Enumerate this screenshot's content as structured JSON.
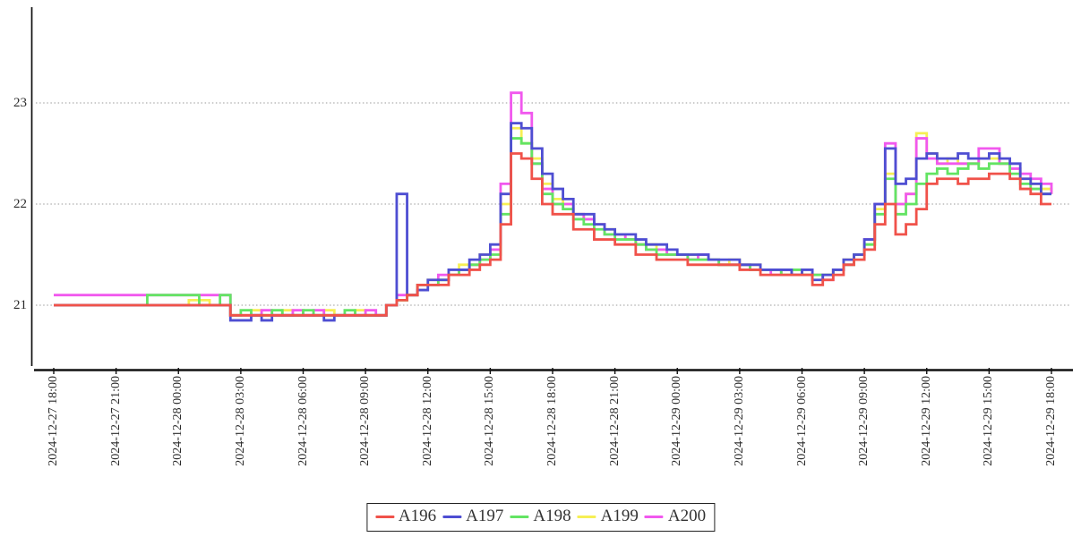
{
  "chart_data": {
    "type": "line",
    "step_mode": "post",
    "title": "",
    "xlabel": "",
    "ylabel": "",
    "grid": "horizontal-dotted",
    "legend_position": "bottom-center",
    "x_start": "2024-12-27 18:00",
    "x_end": "2024-12-29 18:00",
    "x_interval_minutes": 30,
    "x_tick_labels": [
      "2024-12-27 18:00",
      "2024-12-27 21:00",
      "2024-12-28 00:00",
      "2024-12-28 03:00",
      "2024-12-28 06:00",
      "2024-12-28 09:00",
      "2024-12-28 12:00",
      "2024-12-28 15:00",
      "2024-12-28 18:00",
      "2024-12-28 21:00",
      "2024-12-29 00:00",
      "2024-12-29 03:00",
      "2024-12-29 06:00",
      "2024-12-29 09:00",
      "2024-12-29 12:00",
      "2024-12-29 15:00",
      "2024-12-29 18:00"
    ],
    "y_ticks": [
      21,
      22,
      23
    ],
    "ylim": [
      20.4,
      23.95
    ],
    "draw_order": [
      "A199",
      "A200",
      "A198",
      "A197",
      "A196"
    ],
    "series": [
      {
        "name": "A196",
        "color": "#f0524a",
        "values": [
          21,
          21,
          21,
          21,
          21,
          21,
          21,
          21,
          21,
          21,
          21,
          21,
          21,
          21,
          21,
          21,
          21,
          20.9,
          20.9,
          20.9,
          20.9,
          20.9,
          20.9,
          20.9,
          20.9,
          20.9,
          20.9,
          20.9,
          20.9,
          20.9,
          20.9,
          20.9,
          21,
          21.05,
          21.1,
          21.2,
          21.2,
          21.2,
          21.3,
          21.3,
          21.35,
          21.4,
          21.45,
          21.8,
          22.5,
          22.45,
          22.25,
          22,
          21.9,
          21.9,
          21.75,
          21.75,
          21.65,
          21.65,
          21.6,
          21.6,
          21.5,
          21.5,
          21.45,
          21.45,
          21.45,
          21.4,
          21.4,
          21.4,
          21.4,
          21.4,
          21.35,
          21.35,
          21.3,
          21.3,
          21.3,
          21.3,
          21.3,
          21.2,
          21.25,
          21.3,
          21.4,
          21.45,
          21.55,
          21.8,
          22,
          21.7,
          21.8,
          21.95,
          22.2,
          22.25,
          22.25,
          22.2,
          22.25,
          22.25,
          22.3,
          22.3,
          22.25,
          22.15,
          22.1,
          22,
          22
        ]
      },
      {
        "name": "A197",
        "color": "#4e4ed2",
        "values": [
          21,
          21,
          21,
          21,
          21,
          21,
          21,
          21,
          21,
          21,
          21,
          21,
          21,
          21,
          21,
          21,
          21,
          20.85,
          20.85,
          20.9,
          20.85,
          20.9,
          20.9,
          20.9,
          20.9,
          20.9,
          20.85,
          20.9,
          20.9,
          20.9,
          20.9,
          20.9,
          21,
          22.1,
          21.1,
          21.15,
          21.25,
          21.25,
          21.35,
          21.35,
          21.45,
          21.5,
          21.6,
          22.1,
          22.8,
          22.75,
          22.55,
          22.3,
          22.15,
          22.05,
          21.9,
          21.9,
          21.8,
          21.75,
          21.7,
          21.7,
          21.65,
          21.6,
          21.6,
          21.55,
          21.5,
          21.5,
          21.5,
          21.45,
          21.45,
          21.45,
          21.4,
          21.4,
          21.35,
          21.35,
          21.35,
          21.3,
          21.35,
          21.25,
          21.3,
          21.35,
          21.45,
          21.5,
          21.65,
          22,
          22.55,
          22.2,
          22.25,
          22.45,
          22.5,
          22.45,
          22.45,
          22.5,
          22.45,
          22.45,
          22.5,
          22.45,
          22.4,
          22.25,
          22.2,
          22.1,
          22.1
        ]
      },
      {
        "name": "A198",
        "color": "#63e463",
        "values": [
          21,
          21,
          21,
          21,
          21,
          21,
          21,
          21,
          21,
          21.1,
          21.1,
          21.1,
          21.1,
          21.1,
          21,
          21,
          21.1,
          20.9,
          20.95,
          20.9,
          20.9,
          20.95,
          20.9,
          20.9,
          20.95,
          20.9,
          20.9,
          20.9,
          20.95,
          20.9,
          20.9,
          20.9,
          21,
          21.05,
          21.1,
          21.2,
          21.2,
          21.25,
          21.3,
          21.35,
          21.4,
          21.45,
          21.5,
          21.9,
          22.65,
          22.6,
          22.4,
          22.1,
          22,
          21.95,
          21.85,
          21.8,
          21.75,
          21.7,
          21.65,
          21.65,
          21.6,
          21.55,
          21.5,
          21.5,
          21.5,
          21.45,
          21.45,
          21.45,
          21.4,
          21.4,
          21.4,
          21.35,
          21.35,
          21.35,
          21.3,
          21.35,
          21.3,
          21.3,
          21.3,
          21.35,
          21.4,
          21.5,
          21.6,
          21.9,
          22.25,
          21.9,
          22,
          22.2,
          22.3,
          22.35,
          22.3,
          22.35,
          22.4,
          22.35,
          22.4,
          22.4,
          22.3,
          22.2,
          22.15,
          22.1,
          22.1
        ]
      },
      {
        "name": "A199",
        "color": "#f6ef54",
        "values": [
          21,
          21,
          21,
          21,
          21,
          21,
          21,
          21,
          21,
          21,
          21,
          21,
          21,
          21.05,
          21.05,
          21,
          21,
          20.9,
          20.9,
          20.95,
          20.9,
          20.9,
          20.95,
          20.9,
          20.9,
          20.9,
          20.95,
          20.9,
          20.9,
          20.95,
          20.9,
          20.9,
          21,
          21.05,
          21.1,
          21.2,
          21.25,
          21.25,
          21.3,
          21.4,
          21.4,
          21.5,
          21.55,
          22,
          22.75,
          22.6,
          22.45,
          22.2,
          22.05,
          22,
          21.9,
          21.85,
          21.8,
          21.75,
          21.7,
          21.65,
          21.6,
          21.6,
          21.55,
          21.5,
          21.5,
          21.5,
          21.45,
          21.45,
          21.4,
          21.45,
          21.4,
          21.4,
          21.35,
          21.35,
          21.3,
          21.35,
          21.3,
          21.3,
          21.3,
          21.35,
          21.45,
          21.5,
          21.6,
          21.95,
          22.3,
          22,
          22.1,
          22.7,
          22.5,
          22.4,
          22.45,
          22.4,
          22.4,
          22.45,
          22.45,
          22.4,
          22.35,
          22.25,
          22.2,
          22.15,
          22.1
        ]
      },
      {
        "name": "A200",
        "color": "#f158ee",
        "values": [
          21.1,
          21.1,
          21.1,
          21.1,
          21.1,
          21.1,
          21.1,
          21.1,
          21.1,
          21.1,
          21.1,
          21.1,
          21.1,
          21.1,
          21.1,
          21.1,
          21.1,
          20.9,
          20.9,
          20.9,
          20.95,
          20.9,
          20.9,
          20.95,
          20.9,
          20.95,
          20.9,
          20.9,
          20.9,
          20.9,
          20.95,
          20.9,
          21,
          21.1,
          21.1,
          21.2,
          21.2,
          21.3,
          21.3,
          21.35,
          21.4,
          21.45,
          21.55,
          22.2,
          23.1,
          22.9,
          22.4,
          22.15,
          22,
          22,
          21.9,
          21.85,
          21.8,
          21.7,
          21.7,
          21.65,
          21.6,
          21.55,
          21.55,
          21.5,
          21.5,
          21.45,
          21.5,
          21.45,
          21.4,
          21.4,
          21.4,
          21.35,
          21.35,
          21.3,
          21.35,
          21.3,
          21.3,
          21.3,
          21.25,
          21.35,
          21.4,
          21.5,
          21.65,
          22,
          22.6,
          22,
          22.1,
          22.65,
          22.45,
          22.4,
          22.4,
          22.4,
          22.4,
          22.55,
          22.55,
          22.4,
          22.35,
          22.3,
          22.25,
          22.2,
          22.1
        ]
      }
    ]
  },
  "axis": {
    "y_labels": [
      "23",
      "22",
      "21"
    ]
  }
}
